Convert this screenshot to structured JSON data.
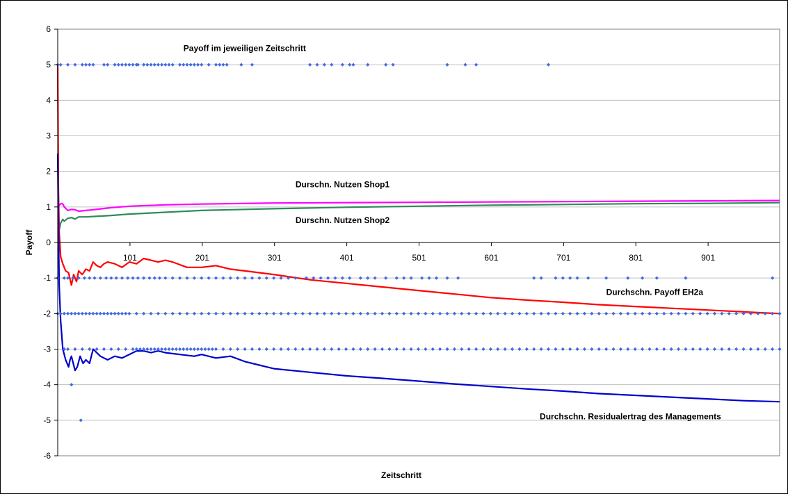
{
  "chart_data": {
    "type": "line",
    "title": "",
    "xlabel": "Zeitschritt",
    "ylabel": "Payoff",
    "xlim": [
      1,
      1000
    ],
    "ylim": [
      -6,
      6
    ],
    "x_ticks": [
      101,
      201,
      301,
      401,
      501,
      601,
      701,
      801,
      901
    ],
    "y_ticks": [
      -6,
      -5,
      -4,
      -3,
      -2,
      -1,
      0,
      1,
      2,
      3,
      4,
      5,
      6
    ],
    "grid": "horizontal",
    "legend": "none",
    "annotations": [
      {
        "text": "Payoff im jeweiligen Zeitschritt",
        "x": 175,
        "y": 5.38
      },
      {
        "text": "Durschn. Nutzen Shop1",
        "x": 330,
        "y": 1.55
      },
      {
        "text": "Durschn. Nutzen Shop2",
        "x": 330,
        "y": 0.55
      },
      {
        "text": "Durchschn. Payoff EH2a",
        "x": 760,
        "y": -1.48
      },
      {
        "text": "Durchschn. Residualertrag des Managements",
        "x": 668,
        "y": -4.97
      }
    ],
    "series": [
      {
        "label": "Durschn. Nutzen Shop1",
        "kind": "line",
        "color": "#ff00ff",
        "x": [
          1,
          3,
          6,
          8,
          10,
          15,
          20,
          25,
          30,
          40,
          50,
          75,
          100,
          150,
          200,
          300,
          400,
          500,
          600,
          700,
          800,
          900,
          1000
        ],
        "y": [
          1.0,
          1.05,
          1.1,
          1.08,
          1.0,
          0.9,
          0.93,
          0.92,
          0.88,
          0.9,
          0.92,
          0.98,
          1.02,
          1.06,
          1.08,
          1.11,
          1.12,
          1.13,
          1.14,
          1.15,
          1.16,
          1.17,
          1.18
        ]
      },
      {
        "label": "Durschn. Nutzen Shop2",
        "kind": "line",
        "color": "#2e8b57",
        "x": [
          1,
          3,
          5,
          8,
          10,
          15,
          20,
          25,
          30,
          40,
          50,
          75,
          100,
          150,
          200,
          300,
          400,
          500,
          600,
          700,
          800,
          900,
          1000
        ],
        "y": [
          0.4,
          0.35,
          0.55,
          0.65,
          0.6,
          0.68,
          0.7,
          0.66,
          0.72,
          0.72,
          0.73,
          0.76,
          0.8,
          0.85,
          0.9,
          0.95,
          0.99,
          1.02,
          1.05,
          1.07,
          1.09,
          1.1,
          1.12
        ]
      },
      {
        "label": "Durchschn. Payoff EH2a",
        "kind": "line",
        "color": "#ff0000",
        "x": [
          1,
          2,
          3,
          5,
          8,
          12,
          16,
          20,
          23,
          27,
          30,
          35,
          40,
          45,
          50,
          55,
          60,
          65,
          70,
          80,
          90,
          100,
          110,
          120,
          130,
          140,
          150,
          160,
          180,
          200,
          220,
          240,
          260,
          280,
          300,
          350,
          400,
          450,
          500,
          550,
          600,
          650,
          700,
          750,
          800,
          850,
          900,
          950,
          1000
        ],
        "y": [
          5.0,
          1.5,
          0.3,
          -0.4,
          -0.6,
          -0.8,
          -0.85,
          -1.2,
          -0.9,
          -1.1,
          -0.8,
          -0.9,
          -0.75,
          -0.8,
          -0.55,
          -0.65,
          -0.7,
          -0.6,
          -0.55,
          -0.6,
          -0.7,
          -0.55,
          -0.6,
          -0.45,
          -0.5,
          -0.55,
          -0.5,
          -0.55,
          -0.7,
          -0.7,
          -0.65,
          -0.75,
          -0.8,
          -0.85,
          -0.9,
          -1.05,
          -1.15,
          -1.25,
          -1.35,
          -1.45,
          -1.55,
          -1.62,
          -1.68,
          -1.75,
          -1.8,
          -1.85,
          -1.9,
          -1.95,
          -2.0
        ]
      },
      {
        "label": "Durchschn. Residualertrag des Managements",
        "kind": "line",
        "color": "#0000cd",
        "x": [
          1,
          2,
          3,
          5,
          8,
          12,
          16,
          18,
          20,
          25,
          28,
          32,
          36,
          40,
          45,
          50,
          60,
          70,
          80,
          90,
          100,
          110,
          120,
          130,
          140,
          150,
          170,
          190,
          200,
          220,
          240,
          260,
          280,
          300,
          350,
          400,
          450,
          500,
          550,
          600,
          650,
          700,
          750,
          800,
          850,
          900,
          950,
          1000
        ],
        "y": [
          2.5,
          0.5,
          -1.2,
          -2.2,
          -3.0,
          -3.3,
          -3.5,
          -3.3,
          -3.2,
          -3.6,
          -3.5,
          -3.2,
          -3.4,
          -3.3,
          -3.4,
          -3.0,
          -3.2,
          -3.3,
          -3.2,
          -3.25,
          -3.15,
          -3.05,
          -3.05,
          -3.1,
          -3.05,
          -3.1,
          -3.15,
          -3.2,
          -3.15,
          -3.25,
          -3.2,
          -3.35,
          -3.45,
          -3.55,
          -3.65,
          -3.75,
          -3.82,
          -3.9,
          -3.98,
          -4.05,
          -4.12,
          -4.18,
          -4.25,
          -4.3,
          -4.35,
          -4.4,
          -4.45,
          -4.48
        ]
      },
      {
        "label": "Payoff im jeweiligen Zeitschritt",
        "kind": "scatter",
        "color": "#4169e1",
        "points_by_level": [
          {
            "y": 5,
            "x": [
              1,
              5,
              15,
              25,
              35,
              40,
              45,
              50,
              65,
              70,
              80,
              85,
              90,
              95,
              100,
              105,
              110,
              112,
              120,
              125,
              130,
              135,
              140,
              145,
              150,
              155,
              160,
              170,
              175,
              180,
              185,
              190,
              195,
              200,
              210,
              220,
              225,
              230,
              235,
              255,
              270,
              350,
              360,
              370,
              380,
              395,
              405,
              410,
              430,
              455,
              465,
              540,
              565,
              580,
              680
            ]
          },
          {
            "y": -1,
            "x": [
              1,
              10,
              15,
              22,
              30,
              38,
              45,
              52,
              60,
              68,
              75,
              82,
              90,
              98,
              105,
              112,
              120,
              128,
              135,
              142,
              150,
              160,
              170,
              180,
              190,
              200,
              210,
              220,
              230,
              240,
              250,
              260,
              270,
              280,
              290,
              300,
              310,
              320,
              330,
              345,
              355,
              365,
              375,
              385,
              395,
              405,
              420,
              430,
              440,
              455,
              470,
              480,
              490,
              505,
              515,
              525,
              540,
              555,
              660,
              670,
              690,
              700,
              710,
              720,
              735,
              760,
              790,
              810,
              830,
              870,
              990
            ]
          },
          {
            "y": -2,
            "x": [
              1,
              5,
              10,
              15,
              20,
              25,
              30,
              35,
              40,
              45,
              50,
              55,
              60,
              65,
              70,
              75,
              80,
              85,
              90,
              95,
              100,
              110,
              120,
              130,
              140,
              150,
              160,
              170,
              180,
              190,
              200,
              210,
              220,
              230,
              240,
              250,
              260,
              270,
              280,
              290,
              300,
              310,
              320,
              330,
              340,
              350,
              360,
              370,
              380,
              390,
              400,
              410,
              420,
              430,
              440,
              450,
              460,
              470,
              480,
              490,
              500,
              510,
              520,
              530,
              540,
              550,
              560,
              570,
              580,
              590,
              600,
              610,
              620,
              630,
              640,
              650,
              660,
              670,
              680,
              690,
              700,
              710,
              720,
              730,
              740,
              750,
              760,
              770,
              780,
              790,
              800,
              810,
              820,
              830,
              840,
              850,
              860,
              870,
              880,
              890,
              900,
              910,
              920,
              930,
              940,
              950,
              960,
              970,
              980,
              990,
              1000
            ]
          },
          {
            "y": -3,
            "x": [
              10,
              15,
              25,
              35,
              45,
              55,
              65,
              75,
              85,
              95,
              105,
              110,
              115,
              120,
              125,
              130,
              135,
              140,
              145,
              150,
              155,
              160,
              165,
              170,
              175,
              180,
              185,
              190,
              195,
              200,
              205,
              210,
              215,
              220,
              230,
              240,
              250,
              260,
              270,
              280,
              290,
              300,
              310,
              320,
              330,
              340,
              350,
              360,
              370,
              380,
              390,
              400,
              410,
              420,
              430,
              440,
              450,
              460,
              470,
              480,
              490,
              500,
              510,
              520,
              530,
              540,
              550,
              560,
              570,
              580,
              590,
              600,
              610,
              620,
              630,
              640,
              650,
              660,
              670,
              680,
              690,
              700,
              710,
              720,
              730,
              740,
              750,
              760,
              770,
              780,
              790,
              800,
              810,
              820,
              830,
              840,
              850,
              860,
              870,
              880,
              890,
              900,
              910,
              920,
              930,
              940,
              950,
              960,
              970,
              980,
              990,
              1000
            ]
          },
          {
            "y": -4,
            "x": [
              20
            ]
          },
          {
            "y": -5,
            "x": [
              33
            ]
          }
        ]
      }
    ]
  }
}
